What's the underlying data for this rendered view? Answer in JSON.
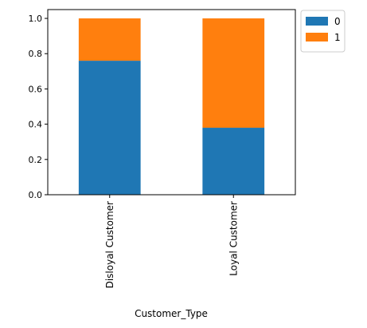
{
  "chart_data": {
    "type": "bar",
    "stacked": true,
    "categories": [
      "Disloyal Customer",
      "Loyal Customer"
    ],
    "series": [
      {
        "name": "0",
        "values": [
          0.76,
          0.38
        ],
        "color": "#1f77b4"
      },
      {
        "name": "1",
        "values": [
          0.24,
          0.62
        ],
        "color": "#ff7f0e"
      }
    ],
    "xlabel": "Customer_Type",
    "ylabel": "",
    "ylim": [
      0,
      1.05
    ],
    "yticks": [
      0.0,
      0.2,
      0.4,
      0.6,
      0.8,
      1.0
    ],
    "ytick_labels": [
      "0.0",
      "0.2",
      "0.4",
      "0.6",
      "0.8",
      "1.0"
    ],
    "legend_position": "outside-top-right",
    "grid": false
  }
}
